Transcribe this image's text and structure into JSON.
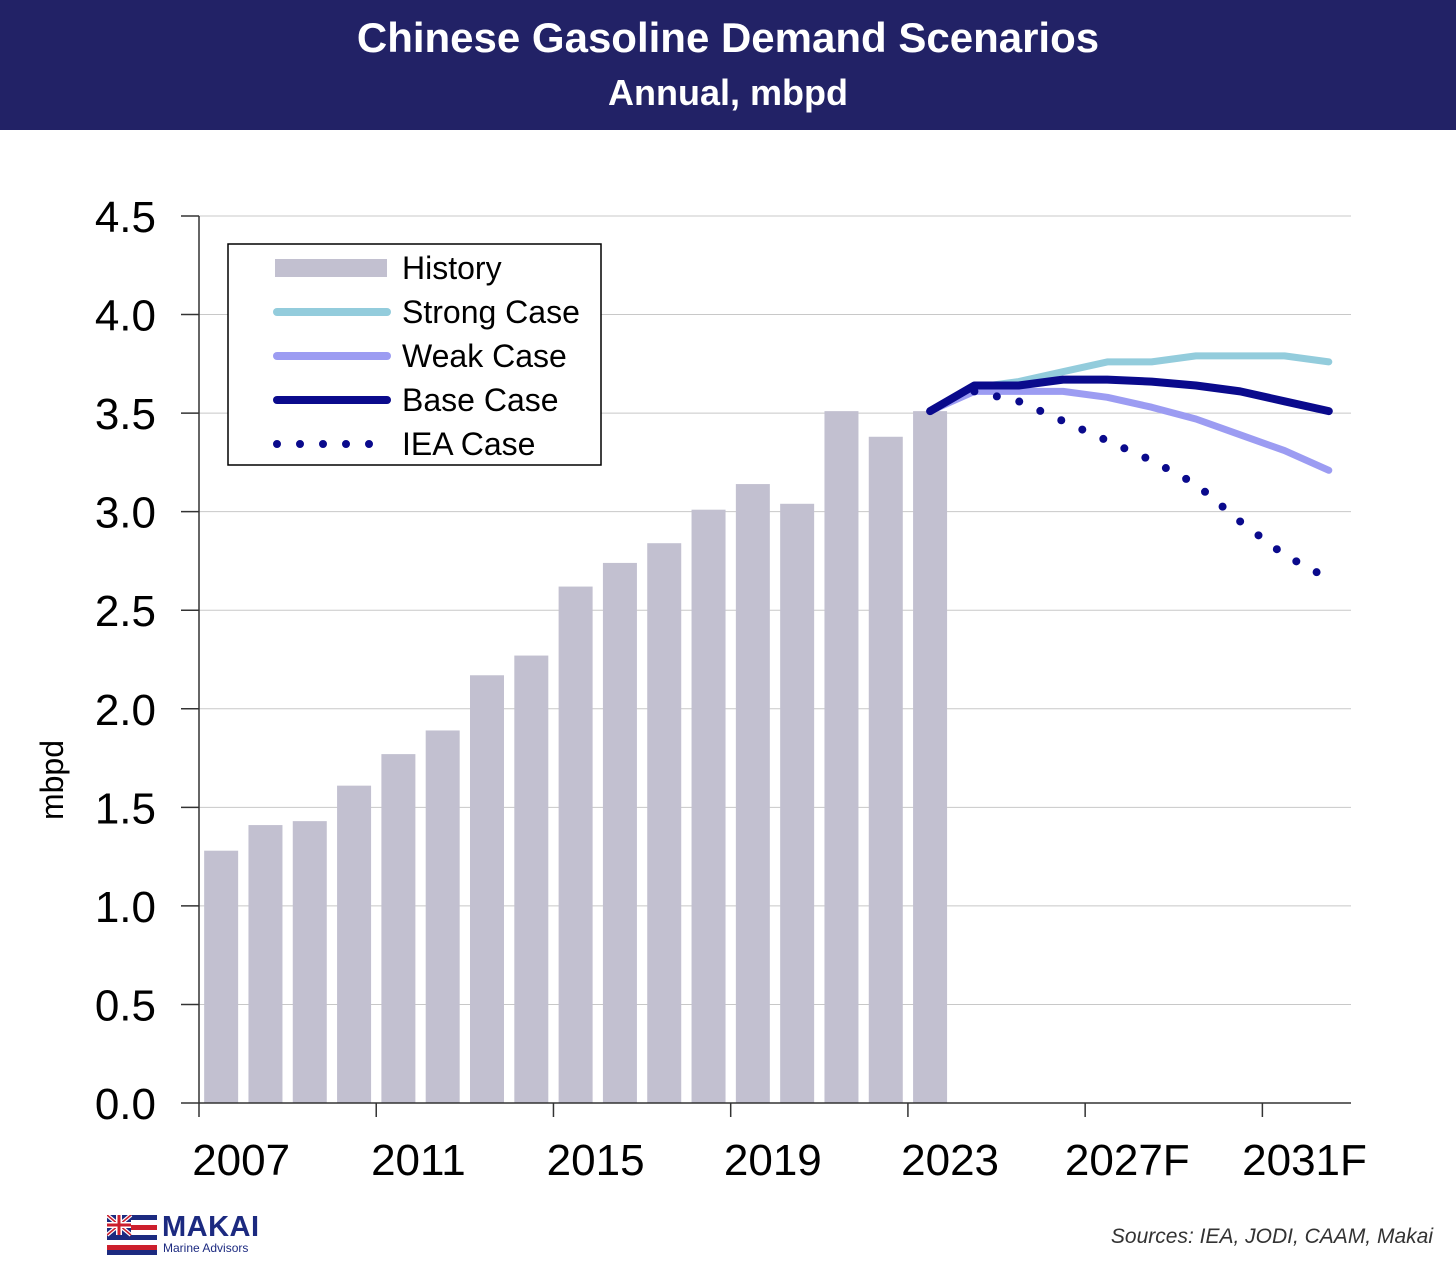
{
  "header": {
    "title": "Chinese Gasoline Demand Scenarios",
    "subtitle": "Annual, mbpd"
  },
  "chart_data": {
    "type": "bar",
    "title": "Chinese Gasoline Demand Scenarios",
    "subtitle": "Annual, mbpd",
    "ylabel": "mbpd",
    "xlabel": "",
    "ylim": [
      0,
      4.5
    ],
    "yticks": [
      "0.0",
      "0.5",
      "1.0",
      "1.5",
      "2.0",
      "2.5",
      "3.0",
      "3.5",
      "4.0",
      "4.5"
    ],
    "xtick_labels": [
      "2007",
      "2011",
      "2015",
      "2019",
      "2023",
      "2027F",
      "2031F"
    ],
    "categories": [
      "2007",
      "2008",
      "2009",
      "2010",
      "2011",
      "2012",
      "2013",
      "2014",
      "2015",
      "2016",
      "2017",
      "2018",
      "2019",
      "2020",
      "2021",
      "2022",
      "2023",
      "2024F",
      "2025F",
      "2026F",
      "2027F",
      "2028F",
      "2029F",
      "2030F",
      "2031F",
      "2032F"
    ],
    "grid": true,
    "legend_position": "top-left",
    "series": [
      {
        "name": "History",
        "kind": "bar",
        "color": "#c2c0d0",
        "x": [
          "2007",
          "2008",
          "2009",
          "2010",
          "2011",
          "2012",
          "2013",
          "2014",
          "2015",
          "2016",
          "2017",
          "2018",
          "2019",
          "2020",
          "2021",
          "2022",
          "2023"
        ],
        "values": [
          1.28,
          1.41,
          1.43,
          1.61,
          1.77,
          1.89,
          2.17,
          2.27,
          2.62,
          2.74,
          2.84,
          3.01,
          3.14,
          3.04,
          3.51,
          3.38,
          3.51
        ]
      },
      {
        "name": "Strong Case",
        "kind": "line",
        "color": "#93ccdc",
        "x": [
          "2023",
          "2024F",
          "2025F",
          "2026F",
          "2027F",
          "2028F",
          "2029F",
          "2030F",
          "2031F",
          "2032F"
        ],
        "values": [
          3.51,
          3.63,
          3.66,
          3.71,
          3.76,
          3.76,
          3.79,
          3.79,
          3.79,
          3.76
        ]
      },
      {
        "name": "Weak Case",
        "kind": "line",
        "color": "#9c9cf2",
        "x": [
          "2023",
          "2024F",
          "2025F",
          "2026F",
          "2027F",
          "2028F",
          "2029F",
          "2030F",
          "2031F",
          "2032F"
        ],
        "values": [
          3.51,
          3.61,
          3.61,
          3.61,
          3.58,
          3.53,
          3.47,
          3.39,
          3.31,
          3.21
        ]
      },
      {
        "name": "Base Case",
        "kind": "line",
        "color": "#0a0a8c",
        "x": [
          "2023",
          "2024F",
          "2025F",
          "2026F",
          "2027F",
          "2028F",
          "2029F",
          "2030F",
          "2031F",
          "2032F"
        ],
        "values": [
          3.51,
          3.64,
          3.64,
          3.67,
          3.67,
          3.66,
          3.64,
          3.61,
          3.56,
          3.51
        ]
      },
      {
        "name": "IEA Case",
        "kind": "dotted-line",
        "color": "#0a0a8c",
        "x": [
          "2024F",
          "2025F",
          "2026F",
          "2027F",
          "2028F",
          "2029F",
          "2030F",
          "2031F",
          "2032F"
        ],
        "values": [
          3.61,
          3.56,
          3.46,
          3.36,
          3.26,
          3.14,
          2.95,
          2.78,
          2.66
        ]
      }
    ]
  },
  "footer": {
    "logo_name": "MAKAI",
    "logo_subtitle": "Marine Advisors",
    "logo_icon": "hawaii-flag-icon",
    "source": "Sources: IEA, JODI, CAAM, Makai"
  }
}
